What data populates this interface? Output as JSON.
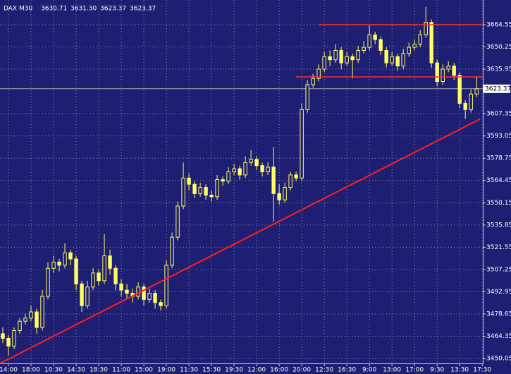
{
  "chart_data": {
    "type": "candlestick",
    "symbol": "DAX M30",
    "quote": [
      {
        "value": 3630.71,
        "label": "3630.71"
      },
      {
        "value": 3631.3,
        "label": "3631.30"
      },
      {
        "value": 3623.37,
        "label": "3623.37"
      },
      {
        "value": 3623.37,
        "label": "3623.37"
      }
    ],
    "candle_color": "#ffff66",
    "candles": [
      [
        3466,
        3470,
        3460,
        3463
      ],
      [
        3463,
        3465,
        3452,
        3458
      ],
      [
        3458,
        3470,
        3456,
        3468
      ],
      [
        3468,
        3476,
        3466,
        3474
      ],
      [
        3474,
        3479,
        3472,
        3476
      ],
      [
        3476,
        3484,
        3474,
        3480
      ],
      [
        3480,
        3482,
        3466,
        3470
      ],
      [
        3470,
        3494,
        3468,
        3490
      ],
      [
        3490,
        3512,
        3488,
        3508
      ],
      [
        3508,
        3516,
        3505,
        3512
      ],
      [
        3512,
        3514,
        3506,
        3510
      ],
      [
        3510,
        3524,
        3508,
        3518
      ],
      [
        3518,
        3520,
        3510,
        3514
      ],
      [
        3514,
        3516,
        3494,
        3498
      ],
      [
        3498,
        3500,
        3480,
        3484
      ],
      [
        3484,
        3500,
        3482,
        3496
      ],
      [
        3496,
        3508,
        3494,
        3505
      ],
      [
        3505,
        3507,
        3497,
        3500
      ],
      [
        3500,
        3530,
        3498,
        3516
      ],
      [
        3516,
        3520,
        3504,
        3508
      ],
      [
        3508,
        3510,
        3494,
        3498
      ],
      [
        3498,
        3501,
        3490,
        3494
      ],
      [
        3494,
        3498,
        3488,
        3492
      ],
      [
        3492,
        3495,
        3486,
        3490
      ],
      [
        3490,
        3499,
        3488,
        3496
      ],
      [
        3496,
        3498,
        3484,
        3488
      ],
      [
        3488,
        3495,
        3486,
        3492
      ],
      [
        3492,
        3494,
        3482,
        3486
      ],
      [
        3486,
        3488,
        3481,
        3484
      ],
      [
        3484,
        3513,
        3482,
        3510
      ],
      [
        3510,
        3531,
        3508,
        3528
      ],
      [
        3528,
        3551,
        3526,
        3548
      ],
      [
        3548,
        3576,
        3546,
        3566
      ],
      [
        3566,
        3569,
        3558,
        3562
      ],
      [
        3562,
        3564,
        3553,
        3556
      ],
      [
        3556,
        3563,
        3554,
        3560
      ],
      [
        3560,
        3562,
        3552,
        3555
      ],
      [
        3555,
        3558,
        3551,
        3554
      ],
      [
        3554,
        3568,
        3552,
        3565
      ],
      [
        3565,
        3567,
        3561,
        3564
      ],
      [
        3564,
        3573,
        3562,
        3570
      ],
      [
        3570,
        3575,
        3568,
        3572
      ],
      [
        3572,
        3574,
        3565,
        3568
      ],
      [
        3568,
        3580,
        3566,
        3576
      ],
      [
        3576,
        3584,
        3574,
        3578
      ],
      [
        3578,
        3580,
        3571,
        3574
      ],
      [
        3574,
        3576,
        3567,
        3570
      ],
      [
        3570,
        3576,
        3568,
        3573
      ],
      [
        3573,
        3586,
        3538,
        3556
      ],
      [
        3556,
        3562,
        3549,
        3552
      ],
      [
        3552,
        3563,
        3550,
        3560
      ],
      [
        3560,
        3570,
        3558,
        3568
      ],
      [
        3568,
        3570,
        3564,
        3566
      ],
      [
        3566,
        3614,
        3564,
        3610
      ],
      [
        3610,
        3629,
        3608,
        3626
      ],
      [
        3626,
        3633,
        3624,
        3630
      ],
      [
        3630,
        3639,
        3628,
        3636
      ],
      [
        3636,
        3647,
        3634,
        3644
      ],
      [
        3644,
        3648,
        3638,
        3642
      ],
      [
        3642,
        3652,
        3640,
        3648
      ],
      [
        3648,
        3650,
        3636,
        3640
      ],
      [
        3640,
        3647,
        3638,
        3644
      ],
      [
        3644,
        3646,
        3630,
        3642
      ],
      [
        3642,
        3651,
        3640,
        3648
      ],
      [
        3648,
        3654,
        3646,
        3650
      ],
      [
        3650,
        3664,
        3648,
        3658
      ],
      [
        3658,
        3660,
        3652,
        3655
      ],
      [
        3655,
        3657,
        3645,
        3648
      ],
      [
        3648,
        3650,
        3637,
        3640
      ],
      [
        3640,
        3647,
        3638,
        3644
      ],
      [
        3644,
        3646,
        3635,
        3638
      ],
      [
        3638,
        3649,
        3636,
        3646
      ],
      [
        3646,
        3653,
        3644,
        3650
      ],
      [
        3650,
        3655,
        3648,
        3652
      ],
      [
        3652,
        3661,
        3650,
        3658
      ],
      [
        3658,
        3676,
        3656,
        3666
      ],
      [
        3666,
        3668,
        3637,
        3640
      ],
      [
        3640,
        3642,
        3625,
        3628
      ],
      [
        3628,
        3639,
        3626,
        3636
      ],
      [
        3636,
        3641,
        3634,
        3638
      ],
      [
        3638,
        3640,
        3629,
        3632
      ],
      [
        3632,
        3634,
        3611,
        3614
      ],
      [
        3614,
        3616,
        3604,
        3610
      ],
      [
        3610,
        3623,
        3608,
        3620
      ],
      [
        3620,
        3631.3,
        3618,
        3623.37
      ]
    ],
    "trendline": {
      "color": "#ff2020",
      "x": [
        -0.5,
        84.6
      ],
      "y": [
        3446.9,
        3603.9
      ]
    },
    "hlines": [
      {
        "color": "#ff3030",
        "value": 3664.55,
        "from": 56
      },
      {
        "color": "#ff3030",
        "value": 3631.0,
        "from": 52
      }
    ],
    "current_price": 3623.37,
    "xlim": [
      -0.5,
      85.1
    ],
    "ylim": [
      3446.9,
      3680.4
    ],
    "yticks": [
      3450.05,
      3464.35,
      3478.65,
      3492.95,
      3507.25,
      3521.55,
      3535.85,
      3550.15,
      3564.45,
      3578.75,
      3593.05,
      3607.35,
      3635.95,
      3650.25,
      3664.55
    ],
    "xticks": [
      {
        "value": 1,
        "label": "14:00"
      },
      {
        "value": 5,
        "label": "18:00"
      },
      {
        "value": 9,
        "label": "10:30"
      },
      {
        "value": 13,
        "label": "14:30"
      },
      {
        "value": 17,
        "label": "18:30"
      },
      {
        "value": 21,
        "label": "11:00"
      },
      {
        "value": 25,
        "label": "15:00"
      },
      {
        "value": 29,
        "label": "19:00"
      },
      {
        "value": 33,
        "label": "11:30"
      },
      {
        "value": 37,
        "label": "15:30"
      },
      {
        "value": 41,
        "label": "19:30"
      },
      {
        "value": 45,
        "label": "12:00"
      },
      {
        "value": 49,
        "label": "16:00"
      },
      {
        "value": 53,
        "label": "20:00"
      },
      {
        "value": 57,
        "label": "12:30"
      },
      {
        "value": 61,
        "label": "16:30"
      },
      {
        "value": 65,
        "label": "9:00"
      },
      {
        "value": 69,
        "label": "13:00"
      },
      {
        "value": 73,
        "label": "17:00"
      },
      {
        "value": 77,
        "label": "9:30"
      },
      {
        "value": 81,
        "label": "13:30"
      },
      {
        "value": 85,
        "label": "17:30"
      }
    ],
    "grid": true
  }
}
